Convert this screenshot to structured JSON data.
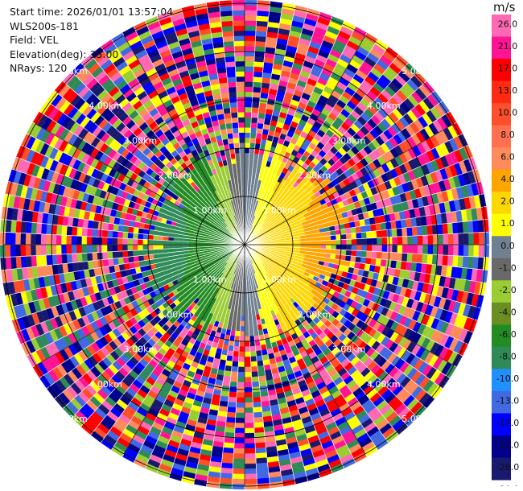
{
  "info": {
    "start_time": "Start time: 2026/01/01 13:57:04",
    "site": "WLS200s-181",
    "field": "Field: VEL",
    "elevation": "Elevation(deg): 35.00",
    "nrays": "NRays: 120"
  },
  "range_labels": [
    "1.00km",
    "2.00km",
    "3.00km",
    "4.00km",
    "5.00km"
  ],
  "colorbar": {
    "unit": "m/s",
    "ticks": [
      "26.0",
      "21.0",
      "17.0",
      "13.0",
      "10.0",
      "8.0",
      "6.0",
      "4.0",
      "2.0",
      "1.0",
      "0.0",
      "-1.0",
      "-2.0",
      "-4.0",
      "-6.0",
      "-8.0",
      "-10.0",
      "-13.0",
      "-17.0",
      "-21.0",
      "-26.0",
      "-30.0"
    ],
    "colors": [
      "#ff69b4",
      "#ff1493",
      "#ff0000",
      "#ff2a12",
      "#ff4e2a",
      "#ff7050",
      "#ff8a5c",
      "#ffa500",
      "#ffd700",
      "#ffff00",
      "#708090",
      "#696969",
      "#9acd32",
      "#6b8e23",
      "#228b22",
      "#2e8b57",
      "#1e90ff",
      "#4169e1",
      "#0000ff",
      "#00008b",
      "#191970"
    ]
  }
}
